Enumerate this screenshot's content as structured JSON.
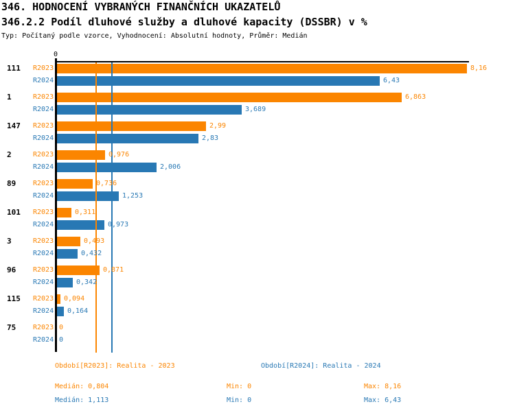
{
  "page": {
    "title_line1": "346. HODNOCENÍ VYBRANÝCH FINANČNÍCH UKAZATELŮ",
    "title_line2": "346.2.2 Podíl dluhové služby a dluhové kapacity (DSSBR) v %",
    "meta_line": "Typ: Počítaný podle vzorce, Vyhodnocení: Absolutní hodnoty, Průměr: Medián"
  },
  "colors": {
    "r2023_orange": "#FB8500",
    "r2024_blue": "#2878B4",
    "axis_black": "#000000",
    "background": "#FFFFFF"
  },
  "chart_data": {
    "type": "bar",
    "orientation": "horizontal",
    "title": "346.2.2 Podíl dluhové služby a dluhové kapacity (DSSBR) v %",
    "x_axis": {
      "zero_label": "0",
      "min": 0,
      "max_extent": 8.16,
      "gridlines": false
    },
    "categories": [
      "111",
      "1",
      "147",
      "2",
      "89",
      "101",
      "3",
      "96",
      "115",
      "75"
    ],
    "series": [
      {
        "name": "R2023",
        "color": "#FB8500",
        "values": [
          8.16,
          6.863,
          2.99,
          0.976,
          0.736,
          0.311,
          0.493,
          0.871,
          0.094,
          0
        ],
        "value_labels": [
          "8,16",
          "6,863",
          "2,99",
          "0,976",
          "0,736",
          "0,311",
          "0,493",
          "0,871",
          "0,094",
          "0"
        ],
        "median": 0.804
      },
      {
        "name": "R2024",
        "color": "#2878B4",
        "values": [
          6.43,
          3.689,
          2.83,
          2.006,
          1.253,
          0.973,
          0.432,
          0.342,
          0.164,
          0
        ],
        "value_labels": [
          "6,43",
          "3,689",
          "2,83",
          "2,006",
          "1,253",
          "0,973",
          "0,432",
          "0,342",
          "0,164",
          "0"
        ],
        "median": 1.113
      }
    ],
    "reference_lines": [
      {
        "series": "R2023",
        "value": 0.804,
        "color": "#FB8500"
      },
      {
        "series": "R2024",
        "value": 1.113,
        "color": "#2878B4"
      }
    ],
    "legend_position": "none"
  },
  "footer": {
    "period_2023": "Období[R2023]: Realita - 2023",
    "period_2024": "Období[R2024]: Realita - 2024",
    "stats_2023": {
      "median": "Medián: 0,804",
      "min": "Min: 0",
      "max": "Max: 8,16"
    },
    "stats_2024": {
      "median": "Medián: 1,113",
      "min": "Min: 0",
      "max": "Max: 6,43"
    }
  }
}
